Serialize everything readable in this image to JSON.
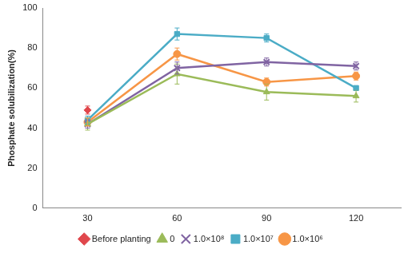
{
  "chart_data": {
    "type": "line",
    "y_label": "Phosphate solubilization(%)",
    "categories": [
      "30",
      "60",
      "90",
      "120"
    ],
    "ylim": [
      0,
      100
    ],
    "yticks": [
      0,
      20,
      40,
      60,
      80,
      100
    ],
    "grid": false,
    "legend": "bottom",
    "series": [
      {
        "name": "Before planting",
        "color": "#e0474c",
        "marker": "diamond",
        "type": "scatter",
        "values": [
          49,
          null,
          null,
          null
        ],
        "errors": [
          2,
          null,
          null,
          null
        ]
      },
      {
        "name": "0",
        "color": "#9bbb59",
        "marker": "triangle",
        "values": [
          42,
          67,
          58,
          56
        ],
        "errors": [
          3,
          5,
          4,
          3
        ]
      },
      {
        "name": "1.0×10⁸",
        "color": "#8064a2",
        "marker": "x",
        "values": [
          42,
          70,
          73,
          71
        ],
        "errors": [
          2,
          3,
          2,
          2
        ]
      },
      {
        "name": "1.0×10⁷",
        "color": "#4bacc6",
        "marker": "square",
        "values": [
          44,
          87,
          85,
          60
        ],
        "errors": [
          2,
          3,
          2,
          1
        ]
      },
      {
        "name": "1.0×10⁶",
        "color": "#f79646",
        "marker": "circle",
        "values": [
          43,
          77,
          63,
          66
        ],
        "errors": [
          2,
          3,
          2,
          2
        ]
      }
    ]
  }
}
